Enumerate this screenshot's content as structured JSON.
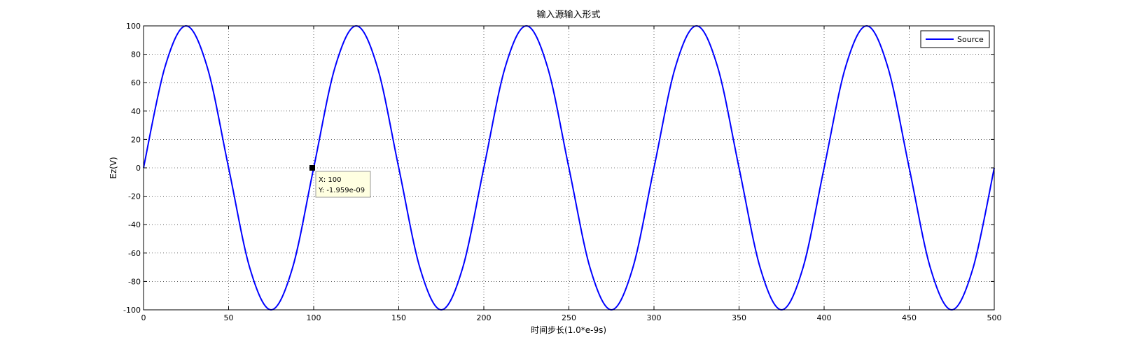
{
  "chart_data": {
    "type": "line",
    "title": "输入源输入形式",
    "xlabel": "时间步长(1.0*e-9s)",
    "ylabel": "Ez(V)",
    "xlim": [
      0,
      500
    ],
    "ylim": [
      -100,
      100
    ],
    "xticks": [
      0,
      50,
      100,
      150,
      200,
      250,
      300,
      350,
      400,
      450,
      500
    ],
    "yticks": [
      -100,
      -80,
      -60,
      -40,
      -20,
      0,
      20,
      40,
      60,
      80,
      100
    ],
    "xtick_labels": [
      "0",
      "50",
      "100",
      "150",
      "200",
      "250",
      "300",
      "350",
      "400",
      "450",
      "500"
    ],
    "ytick_labels": [
      "-100",
      "-80",
      "-60",
      "-40",
      "-20",
      "0",
      "20",
      "40",
      "60",
      "80",
      "100"
    ],
    "grid": true,
    "legend_position": "top-right",
    "series": [
      {
        "name": "Source",
        "color": "#0000ff",
        "x": [
          0,
          12.5,
          25,
          37.5,
          50,
          62.5,
          75,
          87.5,
          100,
          112.5,
          125,
          137.5,
          150,
          162.5,
          175,
          187.5,
          200,
          212.5,
          225,
          237.5,
          250,
          262.5,
          275,
          287.5,
          300,
          312.5,
          325,
          337.5,
          350,
          362.5,
          375,
          387.5,
          400,
          412.5,
          425,
          437.5,
          450,
          462.5,
          475,
          487.5,
          500
        ],
        "y": [
          0,
          70.7,
          100,
          70.7,
          0,
          -70.7,
          -100,
          -70.7,
          0,
          70.7,
          100,
          70.7,
          0,
          -70.7,
          -100,
          -70.7,
          0,
          70.7,
          100,
          70.7,
          0,
          -70.7,
          -100,
          -70.7,
          0,
          70.7,
          100,
          70.7,
          0,
          -70.7,
          -100,
          -70.7,
          0,
          70.7,
          100,
          70.7,
          0,
          -70.7,
          -100,
          -70.7,
          0
        ]
      }
    ],
    "datatip": {
      "x": 100,
      "y": -1.959e-09,
      "x_text": "X: 100",
      "y_text": "Y: -1.959e-09"
    }
  }
}
